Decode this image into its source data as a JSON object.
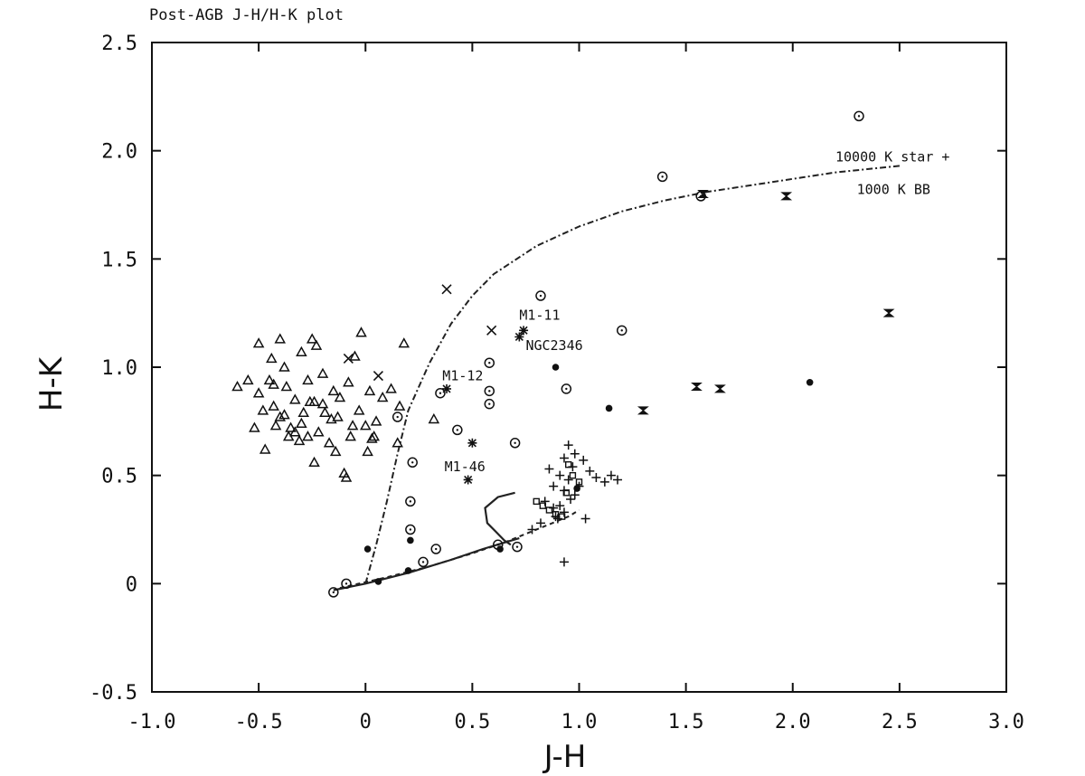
{
  "chart_data": {
    "type": "scatter",
    "title": "Post-AGB J-H/H-K plot",
    "xlabel": "J-H",
    "ylabel": "H-K",
    "xlim": [
      -1.0,
      3.0
    ],
    "ylim": [
      -0.5,
      2.5
    ],
    "xticks": [
      "-1.0",
      "-0.5",
      "0",
      "0.5",
      "1.0",
      "1.5",
      "2.0",
      "2.5",
      "3.0"
    ],
    "xtick_values": [
      -1.0,
      -0.5,
      0,
      0.5,
      1.0,
      1.5,
      2.0,
      2.5,
      3.0
    ],
    "yticks": [
      "-0.5",
      "0",
      "0.5",
      "1.0",
      "1.5",
      "2.0",
      "2.5"
    ],
    "ytick_values": [
      -0.5,
      0,
      0.5,
      1.0,
      1.5,
      2.0,
      2.5
    ],
    "grid": false,
    "series": [
      {
        "marker": "triangle",
        "points": [
          [
            -0.6,
            0.91
          ],
          [
            -0.55,
            0.94
          ],
          [
            -0.5,
            1.11
          ],
          [
            -0.5,
            0.88
          ],
          [
            -0.48,
            0.8
          ],
          [
            -0.45,
            0.94
          ],
          [
            -0.44,
            1.04
          ],
          [
            -0.43,
            0.82
          ],
          [
            -0.4,
            1.13
          ],
          [
            -0.4,
            0.77
          ],
          [
            -0.38,
            1.0
          ],
          [
            -0.37,
            0.91
          ],
          [
            -0.35,
            0.72
          ],
          [
            -0.33,
            0.85
          ],
          [
            -0.31,
            0.66
          ],
          [
            -0.3,
            1.07
          ],
          [
            -0.29,
            0.79
          ],
          [
            -0.27,
            0.94
          ],
          [
            -0.25,
            1.13
          ],
          [
            -0.24,
            0.84
          ],
          [
            -0.23,
            1.1
          ],
          [
            -0.22,
            0.7
          ],
          [
            -0.2,
            0.97
          ],
          [
            -0.19,
            0.79
          ],
          [
            -0.17,
            0.65
          ],
          [
            -0.15,
            0.89
          ],
          [
            -0.13,
            0.77
          ],
          [
            -0.12,
            0.86
          ],
          [
            -0.1,
            0.51
          ],
          [
            -0.08,
            0.93
          ],
          [
            -0.07,
            0.68
          ],
          [
            -0.05,
            1.05
          ],
          [
            -0.03,
            0.8
          ],
          [
            -0.02,
            1.16
          ],
          [
            0.0,
            0.73
          ],
          [
            0.02,
            0.89
          ],
          [
            0.03,
            0.67
          ],
          [
            0.05,
            0.75
          ],
          [
            0.08,
            0.86
          ],
          [
            0.12,
            0.9
          ],
          [
            0.15,
            0.65
          ],
          [
            0.18,
            1.11
          ],
          [
            -0.47,
            0.62
          ],
          [
            -0.52,
            0.72
          ],
          [
            -0.42,
            0.73
          ],
          [
            -0.36,
            0.68
          ],
          [
            -0.33,
            0.7
          ],
          [
            -0.27,
            0.68
          ],
          [
            -0.24,
            0.56
          ],
          [
            -0.14,
            0.61
          ],
          [
            -0.09,
            0.49
          ],
          [
            0.01,
            0.61
          ],
          [
            -0.2,
            0.83
          ],
          [
            -0.3,
            0.74
          ],
          [
            0.16,
            0.82
          ],
          [
            0.32,
            0.76
          ],
          [
            -0.26,
            0.84
          ],
          [
            -0.06,
            0.73
          ],
          [
            0.04,
            0.68
          ],
          [
            -0.43,
            0.92
          ],
          [
            -0.38,
            0.78
          ],
          [
            -0.16,
            0.76
          ]
        ]
      },
      {
        "marker": "circle",
        "points": [
          [
            2.31,
            2.16
          ],
          [
            1.39,
            1.88
          ],
          [
            1.57,
            1.79
          ],
          [
            0.82,
            1.33
          ],
          [
            1.2,
            1.17
          ],
          [
            0.58,
            1.02
          ],
          [
            0.94,
            0.9
          ],
          [
            0.35,
            0.88
          ],
          [
            0.58,
            0.89
          ],
          [
            0.58,
            0.83
          ],
          [
            0.15,
            0.77
          ],
          [
            0.43,
            0.71
          ],
          [
            0.7,
            0.65
          ],
          [
            0.22,
            0.56
          ],
          [
            0.21,
            0.38
          ],
          [
            0.21,
            0.25
          ],
          [
            0.33,
            0.16
          ],
          [
            0.27,
            0.1
          ],
          [
            0.62,
            0.18
          ],
          [
            0.71,
            0.17
          ],
          [
            -0.09,
            0.0
          ],
          [
            -0.15,
            -0.04
          ]
        ]
      },
      {
        "marker": "x",
        "points": [
          [
            0.38,
            1.36
          ],
          [
            0.59,
            1.17
          ],
          [
            -0.08,
            1.04
          ],
          [
            0.06,
            0.96
          ]
        ]
      },
      {
        "marker": "star",
        "points": [
          [
            0.74,
            1.17
          ],
          [
            0.72,
            1.14
          ],
          [
            0.38,
            0.9
          ],
          [
            0.5,
            0.65
          ],
          [
            0.48,
            0.48
          ]
        ]
      },
      {
        "marker": "hourglass",
        "points": [
          [
            1.58,
            1.8
          ],
          [
            1.97,
            1.79
          ],
          [
            2.45,
            1.25
          ],
          [
            1.55,
            0.91
          ],
          [
            1.66,
            0.9
          ],
          [
            1.3,
            0.8
          ]
        ]
      },
      {
        "marker": "dot",
        "points": [
          [
            0.89,
            1.0
          ],
          [
            1.14,
            0.81
          ],
          [
            2.08,
            0.93
          ],
          [
            0.01,
            0.16
          ],
          [
            0.21,
            0.2
          ],
          [
            0.63,
            0.16
          ],
          [
            0.06,
            0.01
          ],
          [
            0.99,
            0.44
          ],
          [
            0.2,
            0.06
          ]
        ]
      },
      {
        "marker": "plus",
        "points": [
          [
            0.95,
            0.64
          ],
          [
            0.98,
            0.6
          ],
          [
            1.02,
            0.57
          ],
          [
            0.93,
            0.58
          ],
          [
            0.97,
            0.54
          ],
          [
            0.86,
            0.53
          ],
          [
            0.91,
            0.5
          ],
          [
            0.95,
            0.48
          ],
          [
            1.05,
            0.52
          ],
          [
            1.08,
            0.49
          ],
          [
            1.12,
            0.47
          ],
          [
            1.15,
            0.5
          ],
          [
            1.18,
            0.48
          ],
          [
            0.88,
            0.45
          ],
          [
            0.93,
            0.43
          ],
          [
            0.98,
            0.41
          ],
          [
            0.84,
            0.38
          ],
          [
            0.88,
            0.35
          ],
          [
            0.93,
            0.33
          ],
          [
            0.9,
            0.3
          ],
          [
            0.82,
            0.28
          ],
          [
            0.78,
            0.25
          ],
          [
            1.03,
            0.3
          ],
          [
            0.93,
            0.1
          ],
          [
            0.91,
            0.36
          ],
          [
            1.0,
            0.45
          ],
          [
            0.96,
            0.39
          ],
          [
            0.89,
            0.31
          ]
        ]
      },
      {
        "marker": "square",
        "points": [
          [
            0.8,
            0.38
          ],
          [
            0.83,
            0.36
          ],
          [
            0.86,
            0.34
          ],
          [
            0.89,
            0.32
          ],
          [
            0.92,
            0.31
          ],
          [
            0.95,
            0.55
          ],
          [
            0.97,
            0.5
          ],
          [
            1.0,
            0.47
          ],
          [
            0.94,
            0.42
          ]
        ]
      }
    ],
    "curves": [
      {
        "style": "dashdot",
        "points": [
          [
            0.0,
            0.0
          ],
          [
            0.05,
            0.18
          ],
          [
            0.1,
            0.38
          ],
          [
            0.15,
            0.6
          ],
          [
            0.2,
            0.8
          ],
          [
            0.3,
            1.02
          ],
          [
            0.4,
            1.2
          ],
          [
            0.5,
            1.33
          ],
          [
            0.6,
            1.43
          ],
          [
            0.8,
            1.56
          ],
          [
            1.0,
            1.65
          ],
          [
            1.2,
            1.72
          ],
          [
            1.4,
            1.77
          ],
          [
            1.6,
            1.81
          ],
          [
            1.8,
            1.84
          ],
          [
            2.0,
            1.87
          ],
          [
            2.2,
            1.9
          ],
          [
            2.4,
            1.92
          ],
          [
            2.5,
            1.93
          ]
        ]
      },
      {
        "style": "solid",
        "points": [
          [
            -0.15,
            -0.03
          ],
          [
            0.0,
            0.0
          ],
          [
            0.2,
            0.05
          ],
          [
            0.4,
            0.11
          ],
          [
            0.55,
            0.16
          ],
          [
            0.65,
            0.19
          ],
          [
            0.72,
            0.21
          ]
        ]
      },
      {
        "style": "dashed",
        "points": [
          [
            -0.12,
            -0.02
          ],
          [
            0.1,
            0.03
          ],
          [
            0.3,
            0.08
          ],
          [
            0.5,
            0.14
          ],
          [
            0.65,
            0.19
          ],
          [
            0.75,
            0.23
          ],
          [
            0.85,
            0.27
          ],
          [
            0.95,
            0.31
          ],
          [
            1.0,
            0.34
          ]
        ]
      },
      {
        "style": "solid",
        "points": [
          [
            0.7,
            0.42
          ],
          [
            0.62,
            0.4
          ],
          [
            0.56,
            0.35
          ],
          [
            0.57,
            0.28
          ],
          [
            0.61,
            0.24
          ],
          [
            0.65,
            0.2
          ],
          [
            0.68,
            0.18
          ]
        ]
      }
    ],
    "annotations": [
      {
        "text": "10000 K star +",
        "x": 2.2,
        "y": 1.95
      },
      {
        "text": "1000 K BB",
        "x": 2.3,
        "y": 1.8
      },
      {
        "text": "M1-11",
        "x": 0.72,
        "y": 1.22
      },
      {
        "text": "NGC2346",
        "x": 0.75,
        "y": 1.08
      },
      {
        "text": "M1-12",
        "x": 0.36,
        "y": 0.94
      },
      {
        "text": "M1-46",
        "x": 0.37,
        "y": 0.52
      }
    ]
  }
}
